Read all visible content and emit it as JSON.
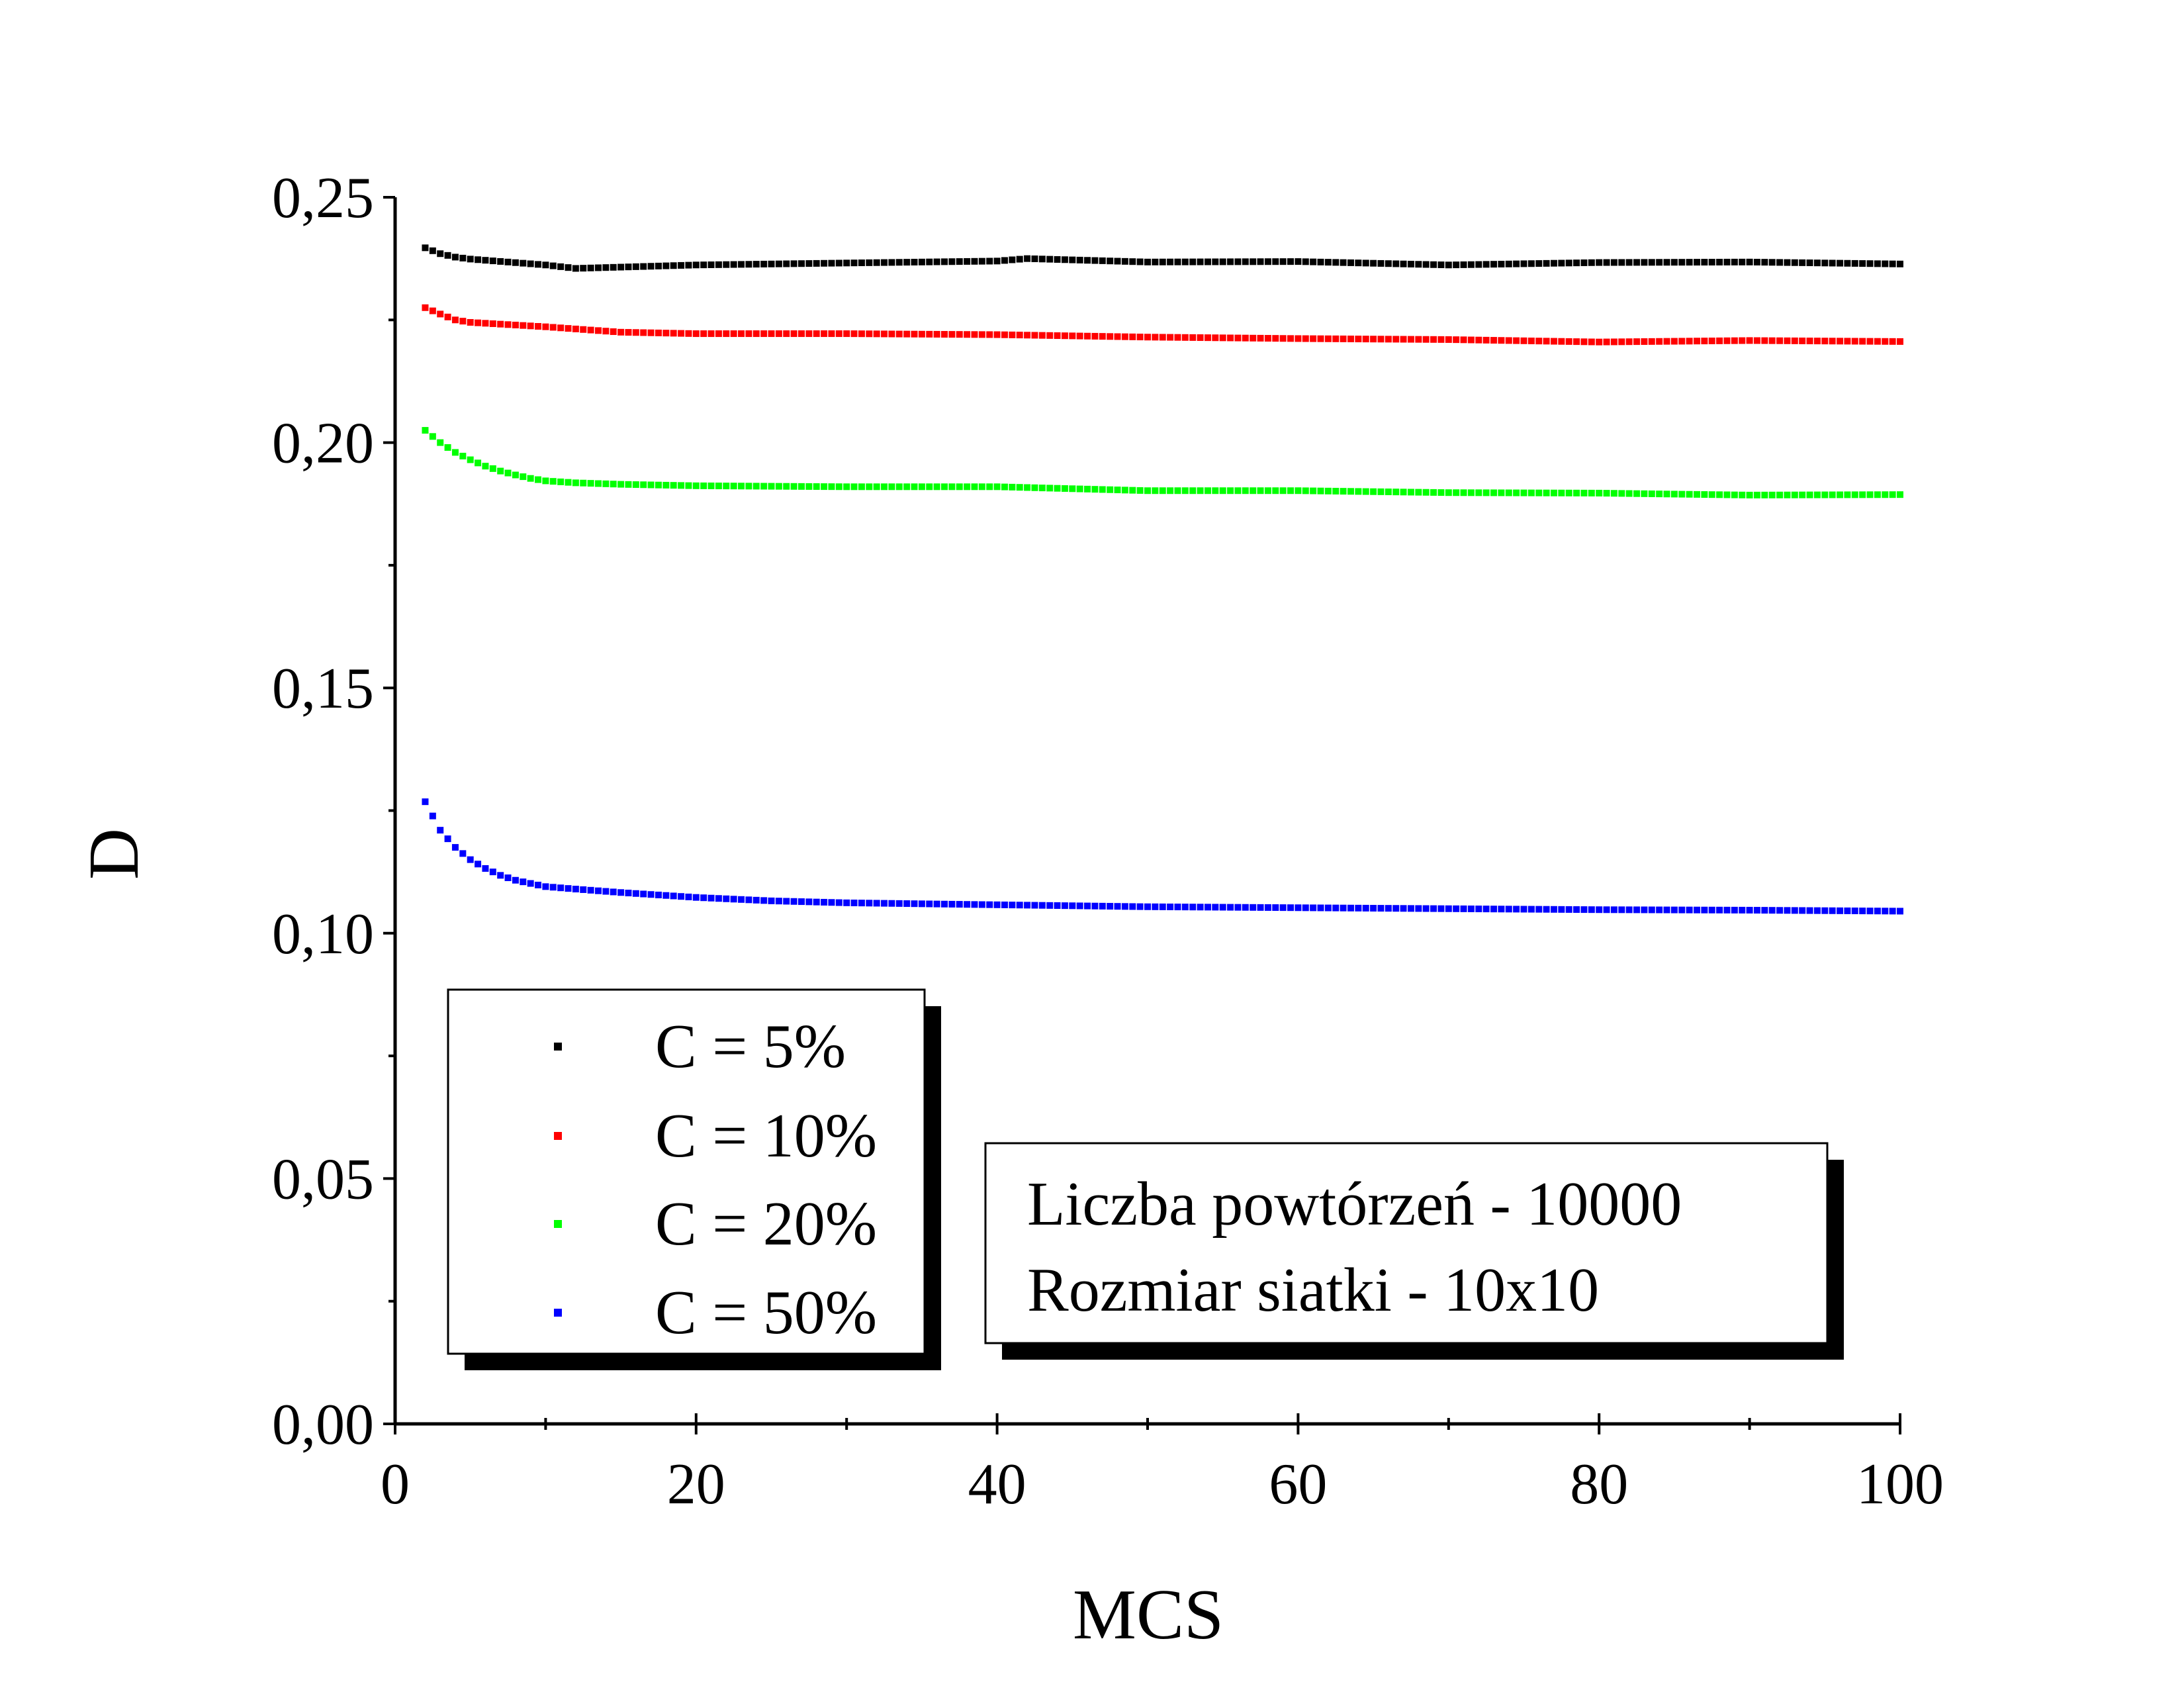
{
  "chart_data": {
    "type": "scatter",
    "xlabel": "MCS",
    "ylabel": "D",
    "xlim": [
      0,
      100
    ],
    "ylim": [
      0.0,
      0.25
    ],
    "x_ticks": [
      0,
      20,
      40,
      60,
      80,
      100
    ],
    "x_tick_labels": [
      "0",
      "20",
      "40",
      "60",
      "80",
      "100"
    ],
    "y_ticks": [
      0.0,
      0.05,
      0.1,
      0.15,
      0.2,
      0.25
    ],
    "y_tick_labels": [
      "0,00",
      "0,05",
      "0,10",
      "0,15",
      "0,20",
      "0,25"
    ],
    "grid": false,
    "legend_position": "bottom-left",
    "series": [
      {
        "name": "C = 5%",
        "color": "#000000",
        "x": [
          2,
          3,
          4,
          5,
          10,
          12,
          20,
          30,
          40,
          42,
          50,
          60,
          70,
          80,
          90,
          100
        ],
        "values": [
          0.2397,
          0.2385,
          0.2378,
          0.2374,
          0.2362,
          0.2355,
          0.2362,
          0.2366,
          0.237,
          0.2375,
          0.2368,
          0.2369,
          0.2362,
          0.2367,
          0.2368,
          0.2364
        ]
      },
      {
        "name": "C = 10%",
        "color": "#ff0000",
        "x": [
          2,
          3,
          4,
          5,
          10,
          15,
          20,
          30,
          40,
          50,
          60,
          70,
          80,
          90,
          100
        ],
        "values": [
          0.2275,
          0.2262,
          0.225,
          0.2245,
          0.2236,
          0.2225,
          0.2222,
          0.2222,
          0.222,
          0.2215,
          0.2212,
          0.221,
          0.2205,
          0.2208,
          0.2206
        ]
      },
      {
        "name": "C = 20%",
        "color": "#00ff00",
        "x": [
          2,
          3,
          4,
          5,
          6,
          7,
          8,
          9,
          10,
          12,
          15,
          20,
          30,
          40,
          50,
          60,
          70,
          80,
          90,
          100
        ],
        "values": [
          0.2025,
          0.2,
          0.198,
          0.1965,
          0.1952,
          0.1942,
          0.1934,
          0.1927,
          0.1922,
          0.1918,
          0.1915,
          0.1912,
          0.191,
          0.191,
          0.1902,
          0.1902,
          0.1898,
          0.1897,
          0.1893,
          0.1894
        ]
      },
      {
        "name": "C = 50%",
        "color": "#0000ff",
        "x": [
          2,
          3,
          4,
          5,
          6,
          7,
          8,
          10,
          12,
          15,
          20,
          25,
          30,
          40,
          50,
          60,
          70,
          80,
          90,
          100
        ],
        "values": [
          0.1268,
          0.121,
          0.1175,
          0.115,
          0.1132,
          0.1118,
          0.1108,
          0.1095,
          0.109,
          0.1083,
          0.1073,
          0.1066,
          0.1062,
          0.1058,
          0.1054,
          0.1052,
          0.105,
          0.1048,
          0.1047,
          0.1045
        ]
      }
    ],
    "annotation_lines": [
      "Liczba powtórzeń - 10000",
      "Rozmiar siatki - 10x10"
    ]
  }
}
